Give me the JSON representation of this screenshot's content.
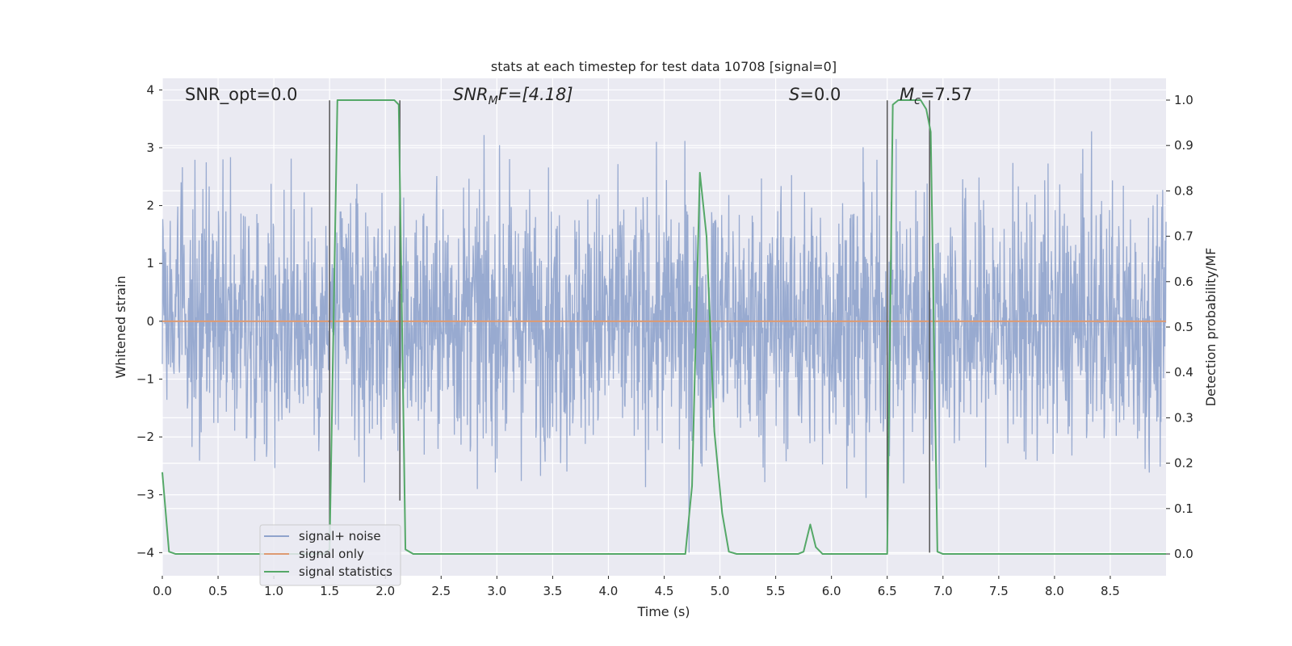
{
  "chart_data": {
    "type": "line",
    "title": "stats at each timestep for test data 10708 [signal=0]",
    "xlabel": "Time (s)",
    "ylabel": "Whitened strain",
    "y2label": "Detection probability/MF",
    "xlim": [
      0.0,
      9.0
    ],
    "ylim": [
      -4.4,
      4.2
    ],
    "y2lim": [
      -0.048,
      1.048
    ],
    "xticks": [
      0.0,
      0.5,
      1.0,
      1.5,
      2.0,
      2.5,
      3.0,
      3.5,
      4.0,
      4.5,
      5.0,
      5.5,
      6.0,
      6.5,
      7.0,
      7.5,
      8.0,
      8.5
    ],
    "xtick_labels": [
      "0.0",
      "0.5",
      "1.0",
      "1.5",
      "2.0",
      "2.5",
      "3.0",
      "3.5",
      "4.0",
      "4.5",
      "5.0",
      "5.5",
      "6.0",
      "6.5",
      "7.0",
      "7.5",
      "8.0",
      "8.5"
    ],
    "yticks": [
      4,
      3,
      2,
      1,
      0,
      -1,
      -2,
      -3,
      -4
    ],
    "ytick_labels": [
      "4",
      "3",
      "2",
      "1",
      "0",
      "−1",
      "−2",
      "−3",
      "−4"
    ],
    "y2ticks": [
      1.0,
      0.9,
      0.8,
      0.7,
      0.6,
      0.5,
      0.4,
      0.3,
      0.2,
      0.1,
      0.0
    ],
    "y2tick_labels": [
      "1.0",
      "0.9",
      "0.8",
      "0.7",
      "0.6",
      "0.5",
      "0.4",
      "0.3",
      "0.2",
      "0.1",
      "0.0"
    ],
    "grid": true,
    "legend_placement": "lower-left",
    "annotations": {
      "snr_opt": "SNR_opt=0.0",
      "snr_mf_main": "SNR",
      "snr_mf_sub": "M",
      "snr_mf_tail": "F=[4.18]",
      "s_main": "S",
      "s_tail": "=0.0",
      "mc_main": "M",
      "mc_sub": "c",
      "mc_tail": "=7.57"
    },
    "vertical_markers": [
      {
        "x": 1.5,
        "y_top": 3.82,
        "y_bottom": -4.0
      },
      {
        "x": 2.13,
        "y_top": 3.82,
        "y_bottom": -3.1
      },
      {
        "x": 6.5,
        "y_top": 3.82,
        "y_bottom": -4.0
      },
      {
        "x": 6.88,
        "y_top": 3.82,
        "y_bottom": -4.0
      }
    ],
    "series": [
      {
        "name": "signal+ noise",
        "color": "#8fa3cc",
        "kind": "noise",
        "x_range": [
          0.0,
          9.0
        ],
        "typical_range": [
          -1.4,
          1.4
        ],
        "peak_max": 3.8,
        "peak_min": -4.0
      },
      {
        "name": "signal only",
        "color": "#dd9a72",
        "kind": "flat",
        "x": [
          0.0,
          9.0
        ],
        "y": [
          0.0,
          0.0
        ]
      },
      {
        "name": "signal statistics",
        "color": "#55a868",
        "kind": "line",
        "axis": "right",
        "x": [
          0.0,
          0.06,
          0.12,
          0.2,
          1.45,
          1.5,
          1.57,
          2.08,
          2.12,
          2.18,
          2.25,
          4.69,
          4.75,
          4.82,
          4.88,
          4.95,
          5.02,
          5.08,
          5.15,
          5.7,
          5.75,
          5.81,
          5.86,
          5.92,
          6.5,
          6.55,
          6.6,
          6.8,
          6.85,
          6.89,
          6.95,
          7.0,
          9.0
        ],
        "y": [
          0.18,
          0.005,
          0.0,
          0.0,
          0.0,
          0.01,
          1.0,
          1.0,
          0.99,
          0.01,
          0.0,
          0.0,
          0.15,
          0.84,
          0.7,
          0.27,
          0.09,
          0.005,
          0.0,
          0.0,
          0.005,
          0.065,
          0.015,
          0.0,
          0.0,
          0.99,
          1.0,
          1.0,
          0.98,
          0.93,
          0.005,
          0.0,
          0.0
        ]
      }
    ]
  }
}
